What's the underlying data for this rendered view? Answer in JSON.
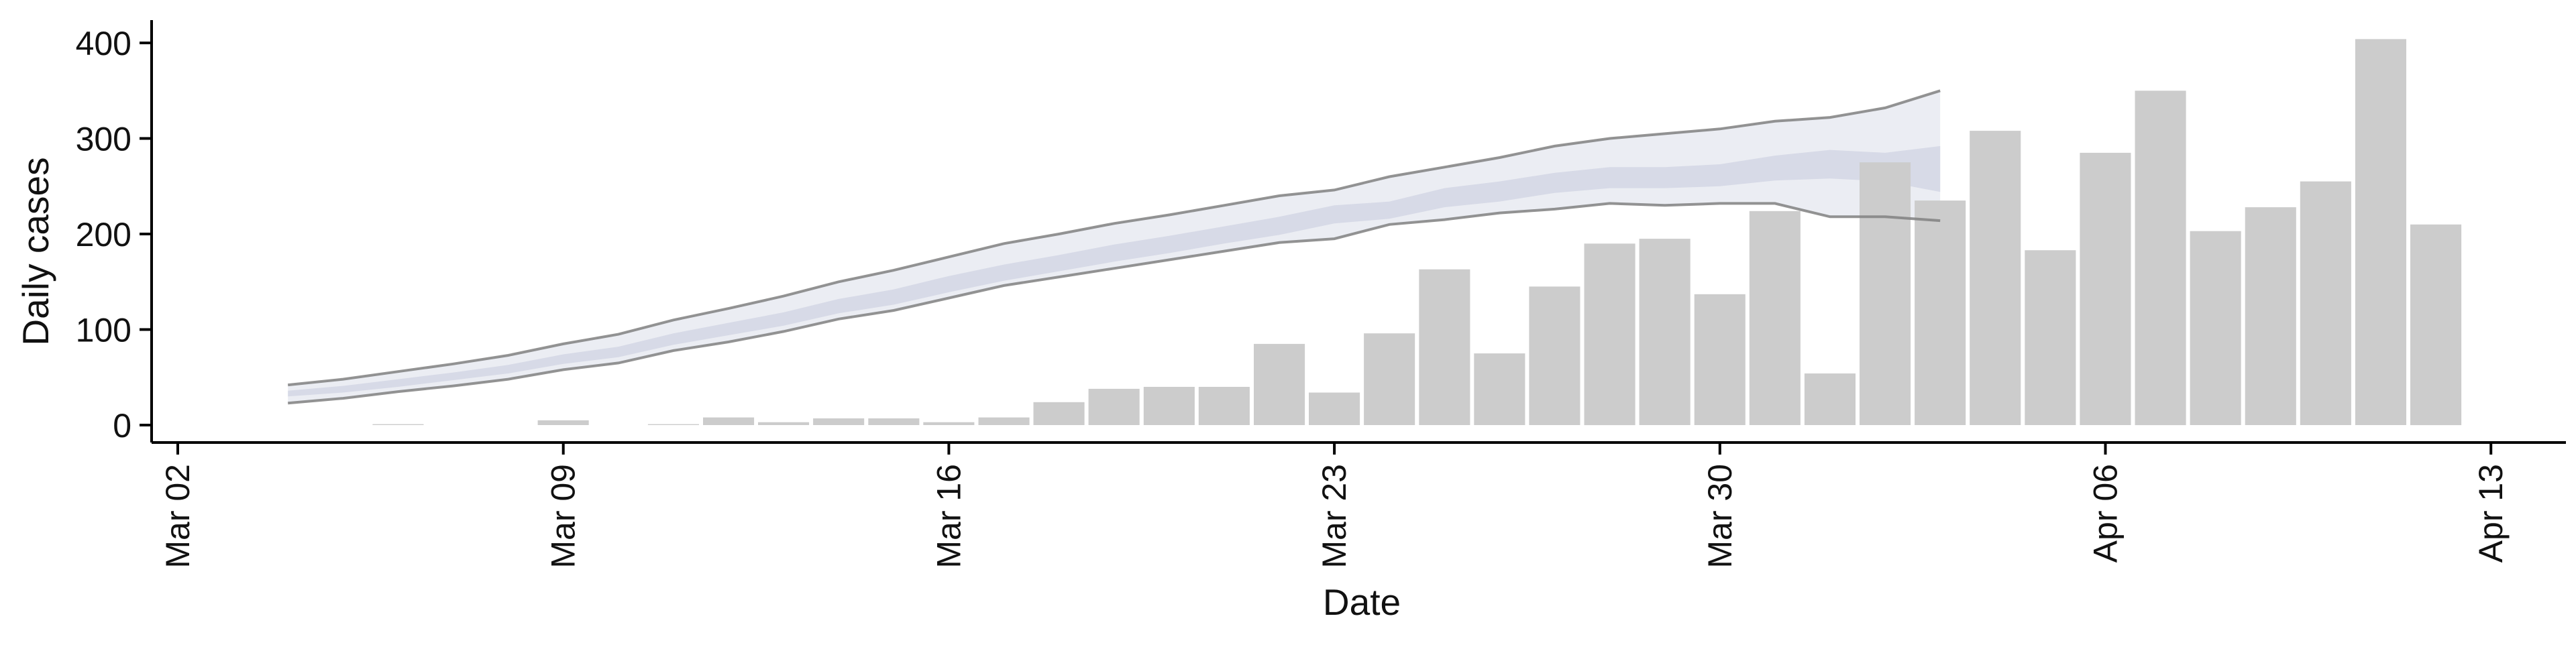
{
  "chart_data": {
    "type": "bar",
    "xlabel": "Date",
    "ylabel": "Daily cases",
    "xlim": [
      "2020-03-02",
      "2020-04-13"
    ],
    "ylim": [
      0,
      420
    ],
    "x_ticks": [
      "Mar 02",
      "Mar 09",
      "Mar 16",
      "Mar 23",
      "Mar 30",
      "Apr 06",
      "Apr 13"
    ],
    "y_ticks": [
      0,
      100,
      200,
      300,
      400
    ],
    "grid": false,
    "legend": "none",
    "bar_color": "#cccccc",
    "band_color": "#c6cbdd",
    "line_color": "#808080",
    "bars": {
      "dates": [
        "2020-03-06",
        "2020-03-07",
        "2020-03-08",
        "2020-03-09",
        "2020-03-10",
        "2020-03-11",
        "2020-03-12",
        "2020-03-13",
        "2020-03-14",
        "2020-03-15",
        "2020-03-16",
        "2020-03-17",
        "2020-03-18",
        "2020-03-19",
        "2020-03-20",
        "2020-03-21",
        "2020-03-22",
        "2020-03-23",
        "2020-03-24",
        "2020-03-25",
        "2020-03-26",
        "2020-03-27",
        "2020-03-28",
        "2020-03-29",
        "2020-03-30",
        "2020-03-31",
        "2020-04-01",
        "2020-04-02",
        "2020-04-03",
        "2020-04-04",
        "2020-04-05",
        "2020-04-06",
        "2020-04-07",
        "2020-04-08",
        "2020-04-09",
        "2020-04-10",
        "2020-04-11",
        "2020-04-12"
      ],
      "values": [
        1,
        0,
        0,
        5,
        0,
        1,
        8,
        3,
        7,
        7,
        3,
        8,
        24,
        38,
        40,
        40,
        85,
        34,
        96,
        163,
        75,
        145,
        190,
        195,
        137,
        224,
        54,
        275,
        235,
        308,
        183,
        285,
        350,
        203,
        228,
        255,
        404,
        210
      ]
    },
    "forecast": {
      "dates": [
        "2020-03-04",
        "2020-03-05",
        "2020-03-06",
        "2020-03-07",
        "2020-03-08",
        "2020-03-09",
        "2020-03-10",
        "2020-03-11",
        "2020-03-12",
        "2020-03-13",
        "2020-03-14",
        "2020-03-15",
        "2020-03-16",
        "2020-03-17",
        "2020-03-18",
        "2020-03-19",
        "2020-03-20",
        "2020-03-21",
        "2020-03-22",
        "2020-03-23",
        "2020-03-24",
        "2020-03-25",
        "2020-03-26",
        "2020-03-27",
        "2020-03-28",
        "2020-03-29",
        "2020-03-30",
        "2020-03-31",
        "2020-04-01",
        "2020-04-02",
        "2020-04-03"
      ],
      "outer_upper": [
        42,
        48,
        56,
        64,
        73,
        85,
        95,
        110,
        122,
        135,
        150,
        162,
        176,
        190,
        200,
        211,
        220,
        230,
        240,
        246,
        260,
        270,
        280,
        292,
        300,
        305,
        310,
        318,
        322,
        332,
        350
      ],
      "outer_lower": [
        23,
        28,
        35,
        41,
        48,
        58,
        65,
        78,
        87,
        98,
        111,
        120,
        133,
        146,
        155,
        164,
        173,
        182,
        191,
        195,
        210,
        215,
        222,
        226,
        232,
        230,
        232,
        232,
        218,
        218,
        214
      ],
      "inner_upper": [
        36,
        41,
        48,
        55,
        63,
        74,
        82,
        96,
        107,
        118,
        132,
        142,
        156,
        168,
        178,
        189,
        198,
        208,
        218,
        230,
        234,
        248,
        255,
        264,
        270,
        270,
        273,
        282,
        288,
        285,
        292
      ],
      "inner_lower": [
        30,
        34,
        40,
        47,
        54,
        64,
        71,
        84,
        94,
        104,
        117,
        126,
        139,
        151,
        161,
        171,
        180,
        190,
        199,
        211,
        216,
        228,
        234,
        243,
        248,
        248,
        250,
        256,
        258,
        255,
        244
      ],
      "median": [
        33,
        38,
        44,
        51,
        58,
        69,
        77,
        90,
        100,
        111,
        124,
        134,
        147,
        159,
        169,
        180,
        189,
        199,
        208,
        220,
        225,
        238,
        244,
        253,
        259,
        259,
        261,
        269,
        273,
        270,
        268
      ]
    }
  }
}
